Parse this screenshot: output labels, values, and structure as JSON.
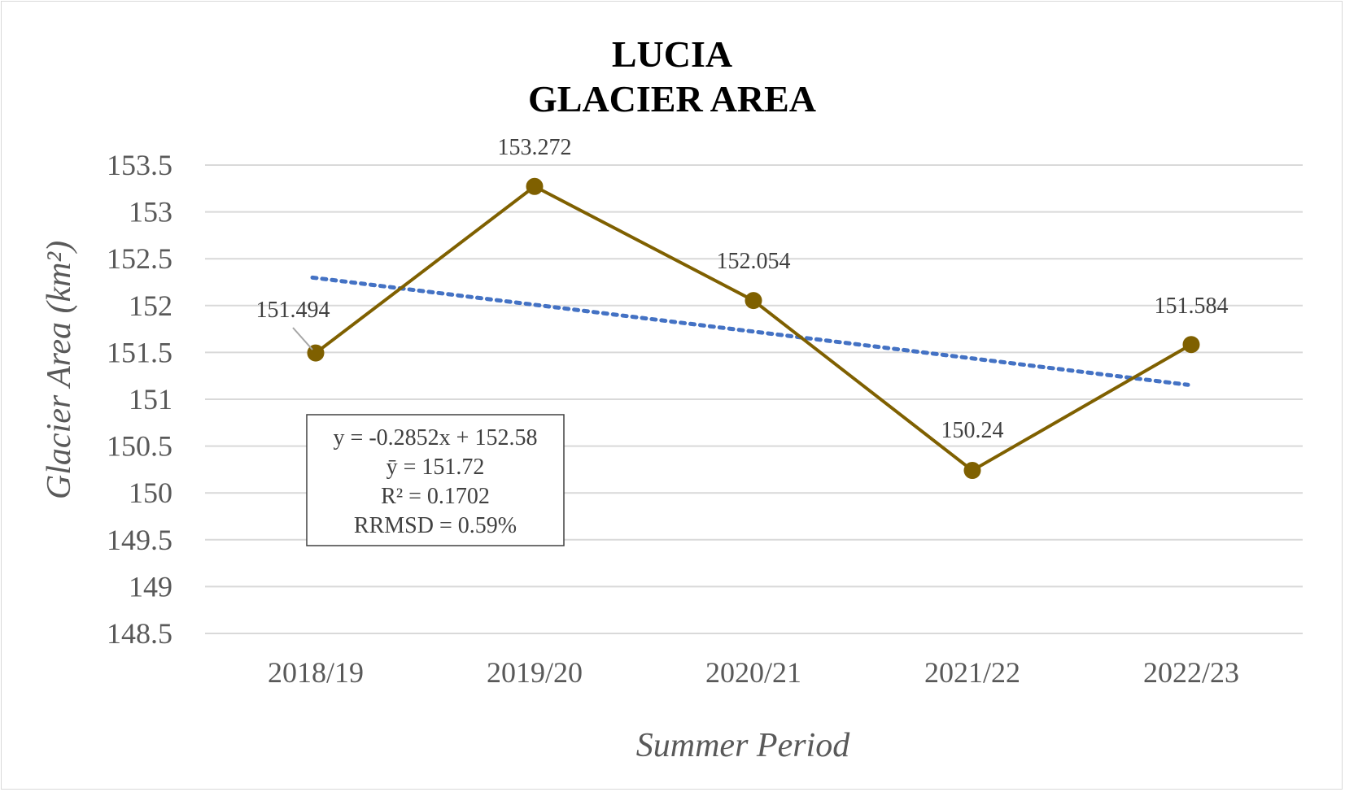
{
  "chart_data": {
    "type": "line",
    "title": [
      "LUCIA",
      "GLACIER AREA"
    ],
    "xlabel": "Summer Period",
    "ylabel": "Glacier Area (km²)",
    "categories": [
      "2018/19",
      "2019/20",
      "2020/21",
      "2021/22",
      "2022/23"
    ],
    "series": [
      {
        "values": [
          151.494,
          153.272,
          152.054,
          150.24,
          151.584
        ],
        "data_labels": [
          "151.494",
          "153.272",
          "152.054",
          "150.24",
          "151.584"
        ],
        "color": "#7f6000"
      }
    ],
    "trendline": {
      "type": "linear",
      "slope": -0.2852,
      "intercept": 152.58,
      "color": "#4472c4",
      "style": "dotted"
    },
    "stats_box": [
      "y = -0.2852x + 152.58",
      "ȳ = 151.72",
      "R² = 0.1702",
      "RRMSD =  0.59%"
    ],
    "ylim": [
      148.5,
      153.5
    ],
    "yticks": [
      148.5,
      149,
      149.5,
      150,
      150.5,
      151,
      151.5,
      152,
      152.5,
      153,
      153.5
    ],
    "ytick_labels": [
      "148.5",
      "149",
      "149.5",
      "150",
      "150.5",
      "151",
      "151.5",
      "152",
      "152.5",
      "153",
      "153.5"
    ],
    "grid": true,
    "legend": "none",
    "gridline_color": "#d9d9d9"
  }
}
